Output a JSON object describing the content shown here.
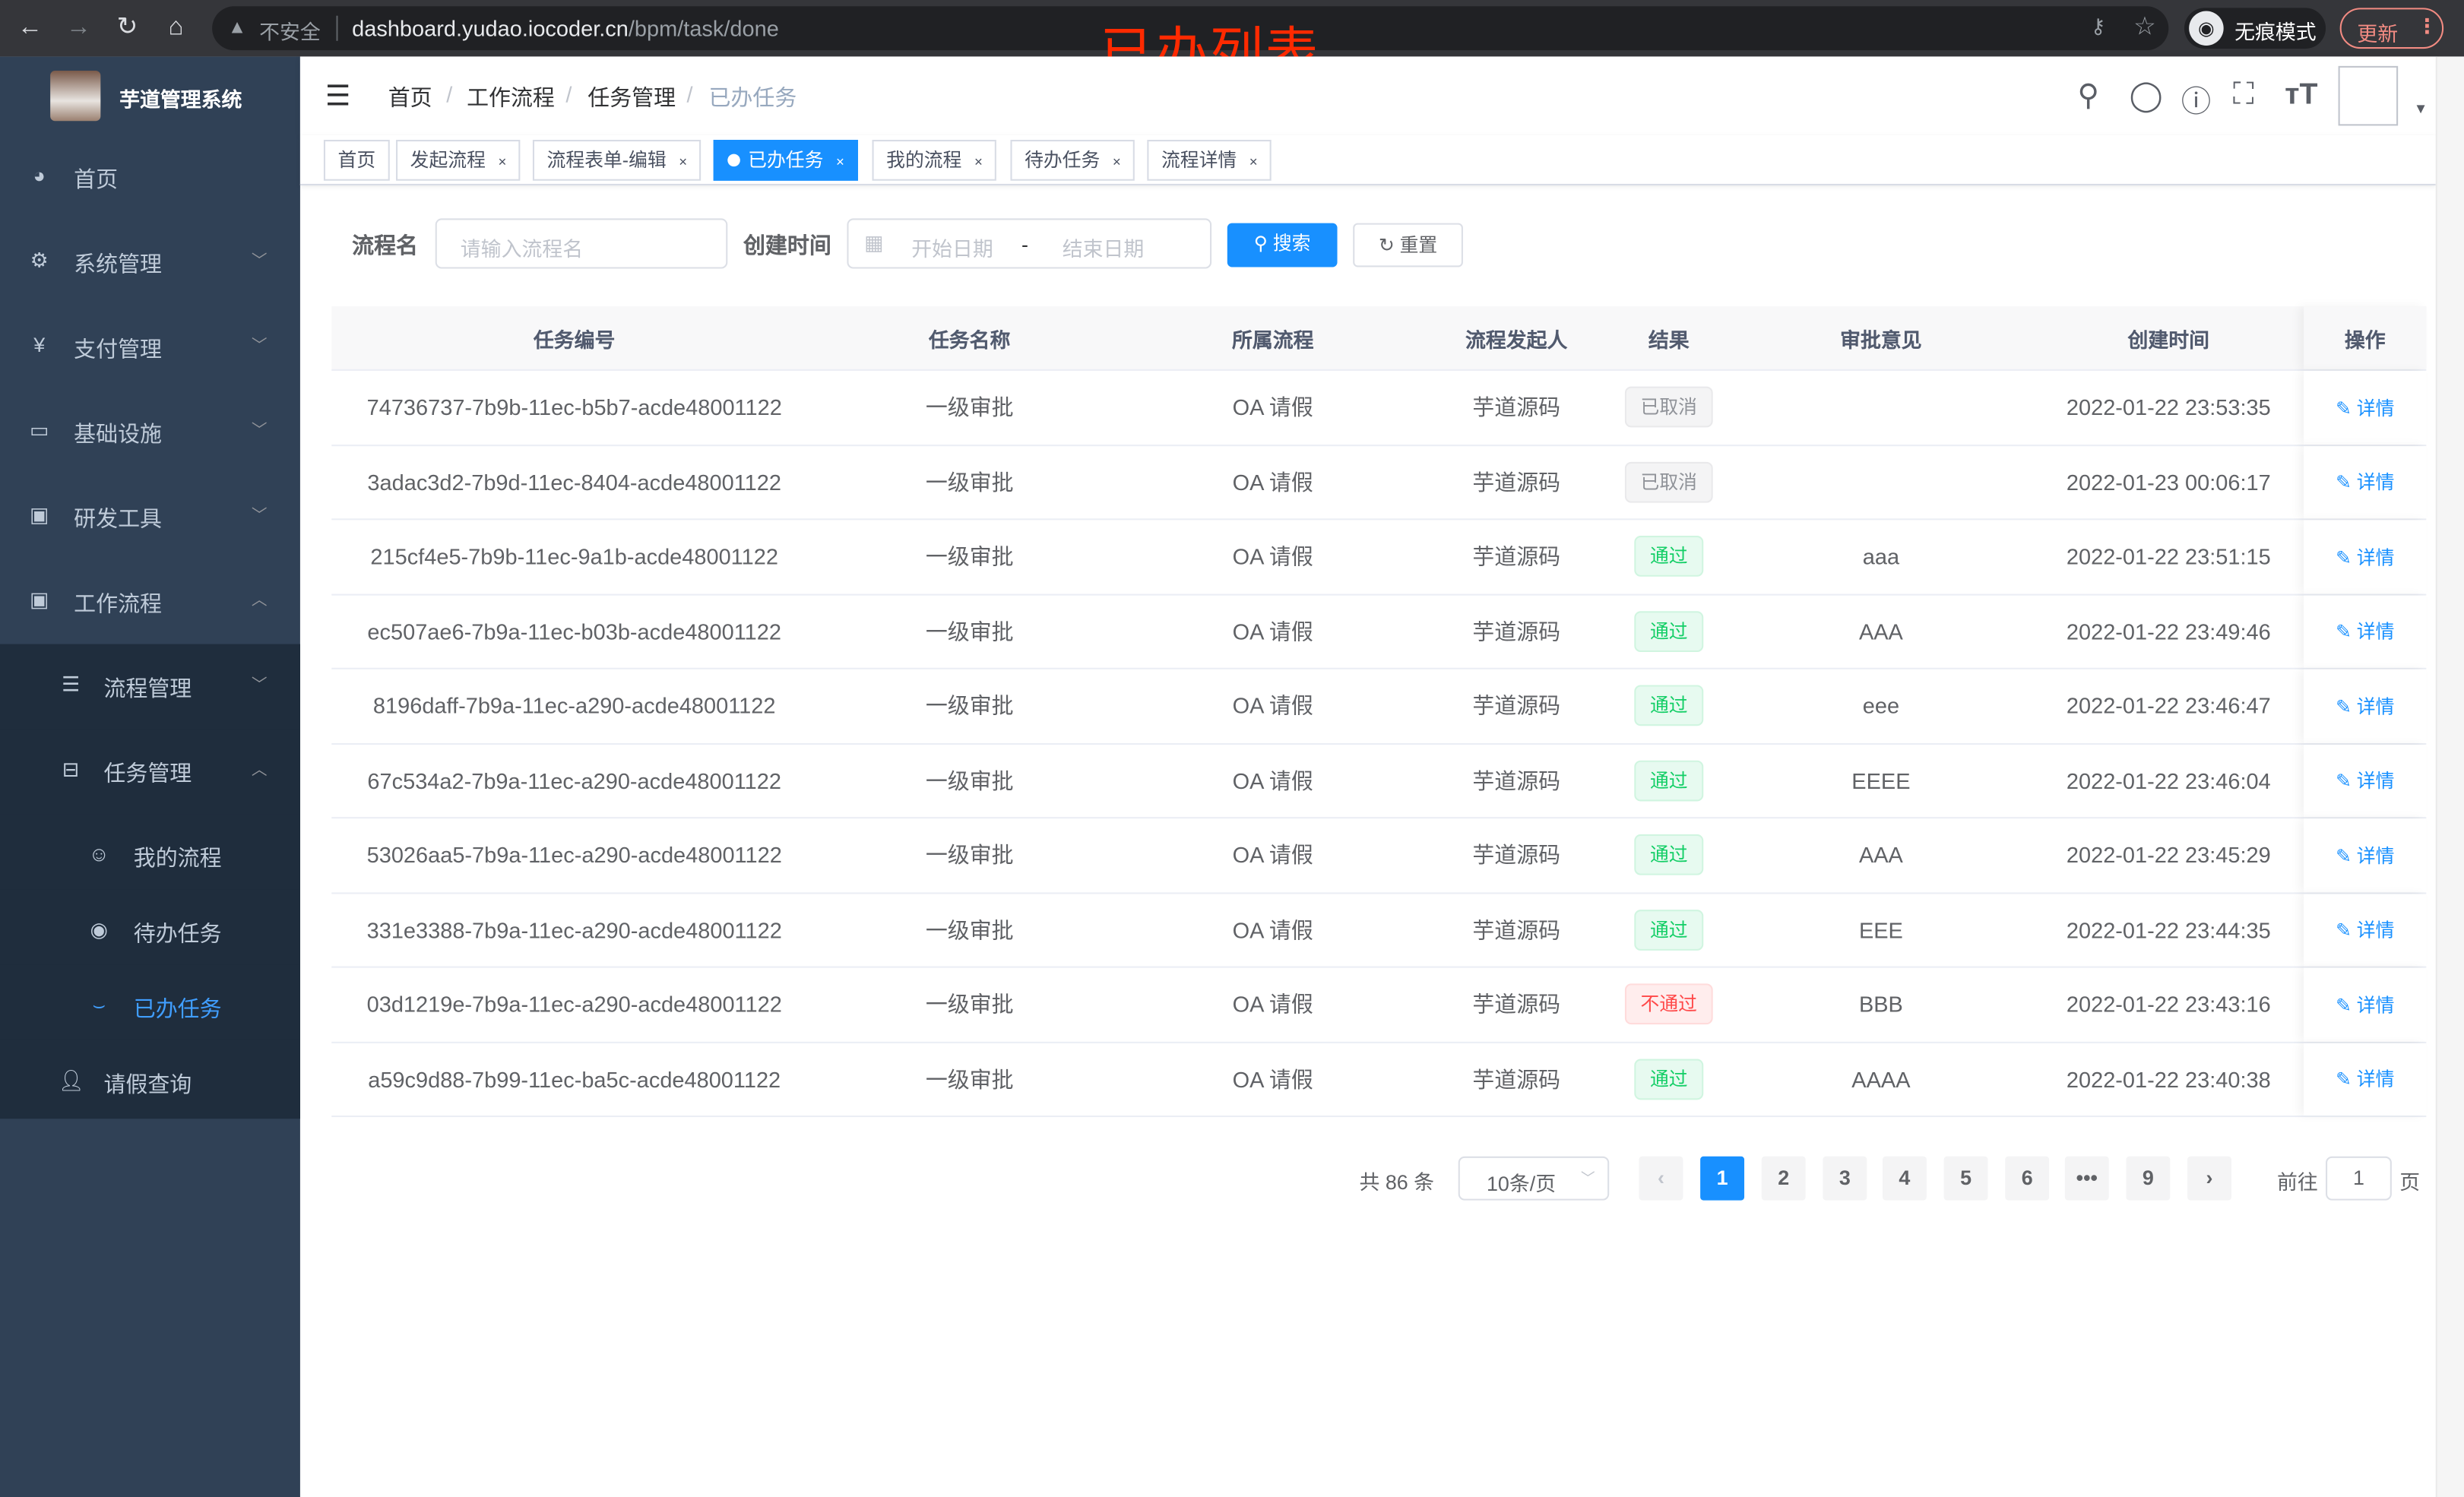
{
  "browser": {
    "insecure_label": "不安全",
    "url_host": "dashboard.yudao.iocoder.cn",
    "url_path": "/bpm/task/done",
    "incognito_label": "无痕模式",
    "update_label": "更新"
  },
  "overlay_title": "已办列表",
  "sidebar": {
    "title": "芋道管理系统",
    "items": [
      {
        "label": "首页",
        "icon": "dashboard-icon"
      },
      {
        "label": "系统管理",
        "icon": "gear-icon"
      },
      {
        "label": "支付管理",
        "icon": "yen-icon"
      },
      {
        "label": "基础设施",
        "icon": "monitor-icon"
      },
      {
        "label": "研发工具",
        "icon": "toolbox-icon"
      },
      {
        "label": "工作流程",
        "icon": "toolbox-icon"
      }
    ],
    "workflow_children": [
      {
        "label": "流程管理",
        "icon": "tree-list-icon"
      },
      {
        "label": "任务管理",
        "icon": "tree-icon"
      }
    ],
    "task_children": [
      {
        "label": "我的流程",
        "icon": "people-icon"
      },
      {
        "label": "待办任务",
        "icon": "eye-icon"
      },
      {
        "label": "已办任务",
        "icon": "eye-closed-icon",
        "active": true
      }
    ],
    "leave_query": {
      "label": "请假查询",
      "icon": "user-icon"
    },
    "active_color": "#409eff"
  },
  "breadcrumb": [
    "首页",
    "工作流程",
    "任务管理",
    "已办任务"
  ],
  "tags": [
    {
      "label": "首页",
      "closable": false
    },
    {
      "label": "发起流程",
      "closable": true
    },
    {
      "label": "流程表单-编辑",
      "closable": true
    },
    {
      "label": "已办任务",
      "closable": true,
      "active": true
    },
    {
      "label": "我的流程",
      "closable": true
    },
    {
      "label": "待办任务",
      "closable": true
    },
    {
      "label": "流程详情",
      "closable": true
    }
  ],
  "filters": {
    "name_label": "流程名",
    "name_placeholder": "请输入流程名",
    "time_label": "创建时间",
    "start_placeholder": "开始日期",
    "range_sep": "-",
    "end_placeholder": "结束日期",
    "search_label": "搜索",
    "reset_label": "重置"
  },
  "table": {
    "columns": [
      "任务编号",
      "任务名称",
      "所属流程",
      "流程发起人",
      "结果",
      "审批意见",
      "创建时间",
      "操作"
    ],
    "rows": [
      {
        "id": "74736737-7b9b-11ec-b5b7-acde48001122",
        "name": "一级审批",
        "process": "OA 请假",
        "starter": "芋道源码",
        "result": "已取消",
        "status": "cancelled",
        "comment": "",
        "time": "2022-01-22 23:53:35",
        "action": "详情"
      },
      {
        "id": "3adac3d2-7b9d-11ec-8404-acde48001122",
        "name": "一级审批",
        "process": "OA 请假",
        "starter": "芋道源码",
        "result": "已取消",
        "status": "cancelled",
        "comment": "",
        "time": "2022-01-23 00:06:17",
        "action": "详情"
      },
      {
        "id": "215cf4e5-7b9b-11ec-9a1b-acde48001122",
        "name": "一级审批",
        "process": "OA 请假",
        "starter": "芋道源码",
        "result": "通过",
        "status": "approved",
        "comment": "aaa",
        "time": "2022-01-22 23:51:15",
        "action": "详情"
      },
      {
        "id": "ec507ae6-7b9a-11ec-b03b-acde48001122",
        "name": "一级审批",
        "process": "OA 请假",
        "starter": "芋道源码",
        "result": "通过",
        "status": "approved",
        "comment": "AAA",
        "time": "2022-01-22 23:49:46",
        "action": "详情"
      },
      {
        "id": "8196daff-7b9a-11ec-a290-acde48001122",
        "name": "一级审批",
        "process": "OA 请假",
        "starter": "芋道源码",
        "result": "通过",
        "status": "approved",
        "comment": "eee",
        "time": "2022-01-22 23:46:47",
        "action": "详情"
      },
      {
        "id": "67c534a2-7b9a-11ec-a290-acde48001122",
        "name": "一级审批",
        "process": "OA 请假",
        "starter": "芋道源码",
        "result": "通过",
        "status": "approved",
        "comment": "EEEE",
        "time": "2022-01-22 23:46:04",
        "action": "详情"
      },
      {
        "id": "53026aa5-7b9a-11ec-a290-acde48001122",
        "name": "一级审批",
        "process": "OA 请假",
        "starter": "芋道源码",
        "result": "通过",
        "status": "approved",
        "comment": "AAA",
        "time": "2022-01-22 23:45:29",
        "action": "详情"
      },
      {
        "id": "331e3388-7b9a-11ec-a290-acde48001122",
        "name": "一级审批",
        "process": "OA 请假",
        "starter": "芋道源码",
        "result": "通过",
        "status": "approved",
        "comment": "EEE",
        "time": "2022-01-22 23:44:35",
        "action": "详情"
      },
      {
        "id": "03d1219e-7b9a-11ec-a290-acde48001122",
        "name": "一级审批",
        "process": "OA 请假",
        "starter": "芋道源码",
        "result": "不通过",
        "status": "rejected",
        "comment": "BBB",
        "time": "2022-01-22 23:43:16",
        "action": "详情"
      },
      {
        "id": "a59c9d88-7b99-11ec-ba5c-acde48001122",
        "name": "一级审批",
        "process": "OA 请假",
        "starter": "芋道源码",
        "result": "通过",
        "status": "approved",
        "comment": "AAAA",
        "time": "2022-01-22 23:40:38",
        "action": "详情"
      }
    ],
    "status_colors": {
      "cancelled": {
        "bg": "#f4f4f5",
        "border": "#e9e9eb",
        "text": "#909399"
      },
      "approved": {
        "bg": "#e7faf0",
        "border": "#d0f5e0",
        "text": "#13ce66"
      },
      "rejected": {
        "bg": "#ffeded",
        "border": "#ffdbdb",
        "text": "#ff4949"
      }
    }
  },
  "pagination": {
    "total_label": "共 86 条",
    "page_size": "10条/页",
    "pages": [
      "1",
      "2",
      "3",
      "4",
      "5",
      "6",
      "•••",
      "9"
    ],
    "current": "1",
    "goto_label": "前往",
    "goto_value": "1",
    "page_suffix": "页"
  },
  "accent": "#1890ff"
}
